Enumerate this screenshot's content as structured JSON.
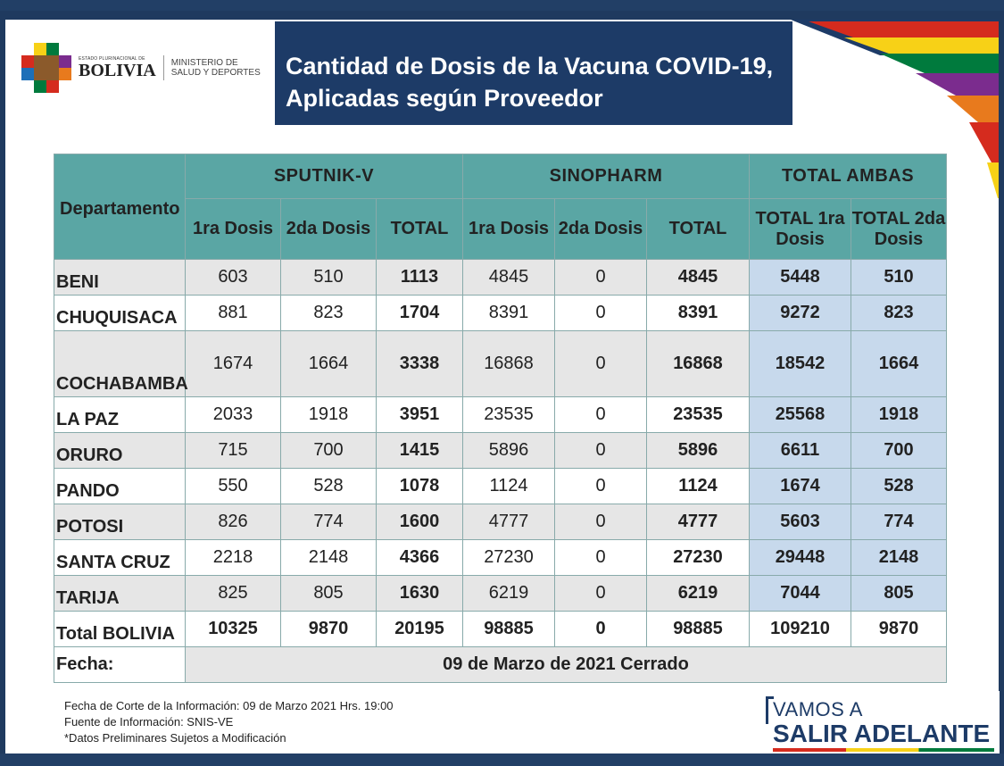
{
  "header": {
    "estado_text": "ESTADO PLURINACIONAL DE",
    "bolivia_text": "BOLIVIA",
    "ministerio_line1": "MINISTERIO DE",
    "ministerio_line2": "SALUD Y DEPORTES",
    "title_line1": "Cantidad de Dosis de la Vacuna COVID-19,",
    "title_line2": "Aplicadas según Proveedor"
  },
  "table": {
    "dep_header": "Departamento",
    "groups": [
      "SPUTNIK-V",
      "SINOPHARM",
      "TOTAL AMBAS"
    ],
    "subheaders": [
      "1ra Dosis",
      "2da Dosis",
      "TOTAL",
      "1ra Dosis",
      "2da Dosis",
      "TOTAL",
      "TOTAL 1ra Dosis",
      "TOTAL 2da Dosis"
    ],
    "rows": [
      {
        "dep": "BENI",
        "v": [
          "603",
          "510",
          "1113",
          "4845",
          "0",
          "4845",
          "5448",
          "510"
        ]
      },
      {
        "dep": "CHUQUISACA",
        "v": [
          "881",
          "823",
          "1704",
          "8391",
          "0",
          "8391",
          "9272",
          "823"
        ]
      },
      {
        "dep": "COCHABAMBA",
        "v": [
          "1674",
          "1664",
          "3338",
          "16868",
          "0",
          "16868",
          "18542",
          "1664"
        ]
      },
      {
        "dep": "LA PAZ",
        "v": [
          "2033",
          "1918",
          "3951",
          "23535",
          "0",
          "23535",
          "25568",
          "1918"
        ]
      },
      {
        "dep": "ORURO",
        "v": [
          "715",
          "700",
          "1415",
          "5896",
          "0",
          "5896",
          "6611",
          "700"
        ]
      },
      {
        "dep": "PANDO",
        "v": [
          "550",
          "528",
          "1078",
          "1124",
          "0",
          "1124",
          "1674",
          "528"
        ]
      },
      {
        "dep": "POTOSI",
        "v": [
          "826",
          "774",
          "1600",
          "4777",
          "0",
          "4777",
          "5603",
          "774"
        ]
      },
      {
        "dep": "SANTA CRUZ",
        "v": [
          "2218",
          "2148",
          "4366",
          "27230",
          "0",
          "27230",
          "29448",
          "2148"
        ]
      },
      {
        "dep": "TARIJA",
        "v": [
          "825",
          "805",
          "1630",
          "6219",
          "0",
          "6219",
          "7044",
          "805"
        ]
      }
    ],
    "total": {
      "dep": "Total BOLIVIA",
      "v": [
        "10325",
        "9870",
        "20195",
        "98885",
        "0",
        "98885",
        "109210",
        "9870"
      ]
    },
    "fecha_label": "Fecha:",
    "fecha_value": "09 de Marzo de 2021 Cerrado"
  },
  "footnotes": {
    "line1": "Fecha de Corte de la Información: 09 de Marzo 2021 Hrs. 19:00",
    "line2": "Fuente de Información: SNIS-VE",
    "line3": "*Datos Preliminares Sujetos a Modificación"
  },
  "slogan": {
    "line1": "VAMOS A",
    "line2a": "SALIR",
    "line2b": "ADELANTE"
  },
  "colors": {
    "navy": "#1d3b67",
    "teal": "#5aa6a4",
    "light_blue": "#c7d9ec",
    "grey": "#e6e6e6"
  }
}
